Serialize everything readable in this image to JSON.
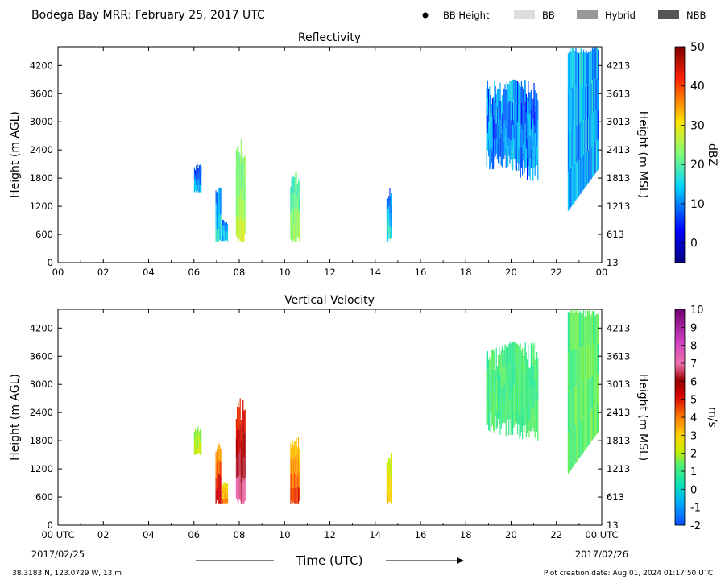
{
  "header": {
    "title": "Bodega Bay MRR:  February 25, 2017 UTC",
    "legend": [
      {
        "label": "BB Height",
        "symbol": "dot",
        "color": "#000000"
      },
      {
        "label": "BB",
        "symbol": "box",
        "color": "#dddddd"
      },
      {
        "label": "Hybrid",
        "symbol": "box",
        "color": "#999999"
      },
      {
        "label": "NBB",
        "symbol": "box",
        "color": "#555555"
      }
    ]
  },
  "footer": {
    "location": "38.3183 N, 123.0729 W, 13 m",
    "creation": "Plot creation date: Aug 01, 2024 01:17:50 UTC",
    "time_label": "Time (UTC)",
    "start_date": "2017/02/25",
    "end_date": "2017/02/26"
  },
  "chart_data": [
    {
      "type": "heatmap",
      "title": "Reflectivity",
      "ylabel": "Height (m AGL)",
      "ylabel_right": "Height (m MSL)",
      "colorbar_label": "dBZ",
      "x_ticks": [
        "00",
        "02",
        "04",
        "06",
        "08",
        "10",
        "12",
        "14",
        "16",
        "18",
        "20",
        "22",
        "00"
      ],
      "xlim_hours": [
        0,
        24
      ],
      "y_ticks": [
        0,
        600,
        1200,
        1800,
        2400,
        3000,
        3600,
        4200
      ],
      "y_ticks_right": [
        "13",
        "613",
        "1213",
        "1813",
        "2413",
        "3013",
        "3613",
        "4213"
      ],
      "ylim": [
        0,
        4600
      ],
      "colorbar": {
        "min": -5,
        "max": 50,
        "ticks": [
          0,
          10,
          20,
          30,
          40,
          50
        ]
      },
      "echoes": [
        {
          "start": 6.0,
          "end": 6.3,
          "bottom": 1500,
          "top": 2050,
          "value": 2
        },
        {
          "start": 6.95,
          "end": 7.2,
          "bottom": 450,
          "top": 1600,
          "value": 6
        },
        {
          "start": 7.25,
          "end": 7.5,
          "bottom": 450,
          "top": 900,
          "value": 4
        },
        {
          "start": 7.85,
          "end": 8.25,
          "bottom": 450,
          "top": 2500,
          "value": 18
        },
        {
          "start": 10.25,
          "end": 10.65,
          "bottom": 450,
          "top": 1800,
          "value": 15
        },
        {
          "start": 14.5,
          "end": 14.75,
          "bottom": 450,
          "top": 1500,
          "value": 6
        },
        {
          "start": 18.9,
          "end": 21.2,
          "bottom": 1700,
          "top": 3900,
          "value": 6
        },
        {
          "start": 22.5,
          "end": 23.85,
          "bottom": 1100,
          "top": 4600,
          "value": 8
        }
      ]
    },
    {
      "type": "heatmap",
      "title": "Vertical Velocity",
      "ylabel": "Height (m AGL)",
      "ylabel_right": "Height (m MSL)",
      "colorbar_label": "m/s",
      "x_ticks": [
        "00 UTC",
        "02",
        "04",
        "06",
        "08",
        "10",
        "12",
        "14",
        "16",
        "18",
        "20",
        "22",
        "00 UTC"
      ],
      "xlim_hours": [
        0,
        24
      ],
      "y_ticks": [
        0,
        600,
        1200,
        1800,
        2400,
        3000,
        3600,
        4200
      ],
      "y_ticks_right": [
        "13",
        "613",
        "1213",
        "1813",
        "2413",
        "3013",
        "3613",
        "4213"
      ],
      "ylim": [
        0,
        4600
      ],
      "colorbar": {
        "min": -2,
        "max": 10,
        "ticks": [
          -2,
          -1,
          0,
          1,
          2,
          3,
          4,
          5,
          6,
          7,
          8,
          9,
          10
        ]
      },
      "echoes": [
        {
          "start": 6.0,
          "end": 6.3,
          "bottom": 1500,
          "top": 2050,
          "value": 1.3
        },
        {
          "start": 6.95,
          "end": 7.2,
          "bottom": 450,
          "top": 1600,
          "value": 3.5
        },
        {
          "start": 7.25,
          "end": 7.5,
          "bottom": 450,
          "top": 900,
          "value": 2.5
        },
        {
          "start": 7.85,
          "end": 8.25,
          "bottom": 450,
          "top": 2500,
          "value": 4.5
        },
        {
          "start": 10.25,
          "end": 10.65,
          "bottom": 450,
          "top": 1800,
          "value": 3
        },
        {
          "start": 14.5,
          "end": 14.75,
          "bottom": 450,
          "top": 1500,
          "value": 2
        },
        {
          "start": 18.9,
          "end": 21.2,
          "bottom": 1700,
          "top": 3900,
          "value": 0.8
        },
        {
          "start": 22.5,
          "end": 23.85,
          "bottom": 1100,
          "top": 4600,
          "value": 1.0
        }
      ]
    }
  ]
}
